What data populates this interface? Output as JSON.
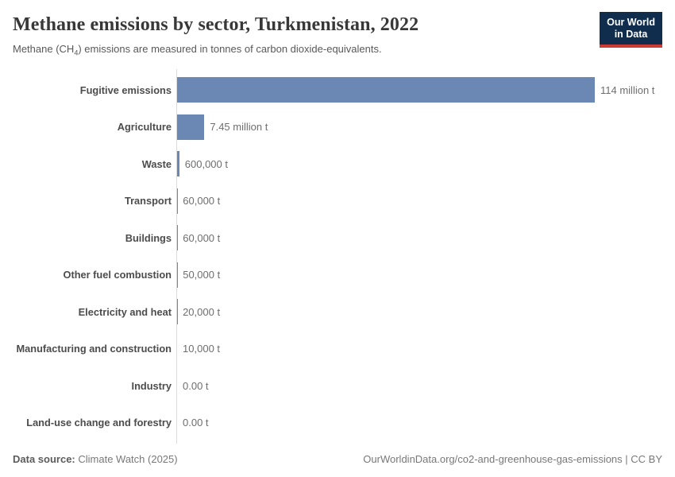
{
  "header": {
    "title": "Methane emissions by sector, Turkmenistan, 2022",
    "subtitle_prefix": "Methane (CH",
    "subtitle_sub": "4",
    "subtitle_suffix": ") emissions are measured in tonnes of carbon dioxide-equivalents.",
    "logo": {
      "line1": "Our World",
      "line2": "in Data",
      "bg_color": "#102d4e",
      "accent_color": "#cc3b34"
    }
  },
  "chart_data": {
    "type": "bar",
    "orientation": "horizontal",
    "title": "Methane emissions by sector, Turkmenistan, 2022",
    "unit": "tonnes of carbon dioxide-equivalents",
    "categories": [
      "Fugitive emissions",
      "Agriculture",
      "Waste",
      "Transport",
      "Buildings",
      "Other fuel combustion",
      "Electricity and heat",
      "Manufacturing and construction",
      "Industry",
      "Land-use change and forestry"
    ],
    "values": [
      114000000,
      7450000,
      600000,
      60000,
      60000,
      50000,
      20000,
      10000,
      0,
      0
    ],
    "value_labels": [
      "114 million t",
      "7.45 million t",
      "600,000 t",
      "60,000 t",
      "60,000 t",
      "50,000 t",
      "20,000 t",
      "10,000 t",
      "0.00 t",
      "0.00 t"
    ],
    "xlim": [
      0,
      114000000
    ],
    "bar_color": "#6b88b4",
    "axis_color": "#dcdcdc",
    "grid": false,
    "legend": false
  },
  "footer": {
    "datasource_label": "Data source:",
    "datasource_value": " Climate Watch (2025)",
    "credit": "OurWorldinData.org/co2-and-greenhouse-gas-emissions | CC BY"
  }
}
